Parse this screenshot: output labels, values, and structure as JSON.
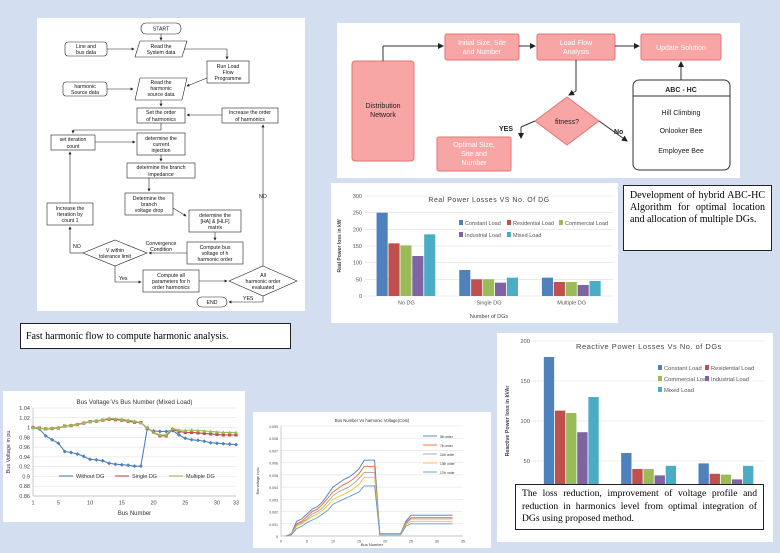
{
  "captions": {
    "flowchart": "Fast harmonic flow to compute harmonic analysis.",
    "abc": "Development of hybrid ABC-HC Algorithm for optimal location and allocation of multiple DGs.",
    "result": "The loss reduction, improvement of voltage profile and reduction in harmonics level from optimal integration of DGs using proposed method."
  },
  "flowchart": {
    "start": "START",
    "line_bus": [
      "Line and",
      "bus data"
    ],
    "read_system": [
      "Read the",
      "System data"
    ],
    "run_load": [
      "Run Load",
      "Flow",
      "Programme"
    ],
    "harm_src": [
      "harmonic",
      "Source data"
    ],
    "read_harm": [
      "Read the",
      "harmonic",
      "source data"
    ],
    "set_order": [
      "Set the order",
      "of harmonics"
    ],
    "inc_order": [
      "Increase the order",
      "of harmonics"
    ],
    "set_iter": [
      "set iteration",
      "count"
    ],
    "current_inj": [
      "determine the",
      "current",
      "injection"
    ],
    "branch_imp": [
      "determine the branch",
      "impedance"
    ],
    "branch_vd": [
      "Determine the",
      "branch",
      "voltage drop"
    ],
    "ha_hlf": [
      "determine the",
      "[HA] & [HLF]",
      "matrix"
    ],
    "inc_iter": [
      "Increase the",
      "iteration by",
      "count 1"
    ],
    "compute_bus": [
      "Compute bus",
      "voltage of h",
      "harmonic order"
    ],
    "v_within": [
      "V within",
      "tolerance limit"
    ],
    "convergence": [
      "Convergence",
      "Condition"
    ],
    "compute_all": [
      "Compute all",
      "parameters for h",
      "order harmonics"
    ],
    "all_eval": [
      "All",
      "harmonic order",
      "evaluated"
    ],
    "end": "END",
    "yes": "Yes",
    "no": "NO",
    "yes2": "YES"
  },
  "abc": {
    "dist_net": [
      "Distribution",
      "Network"
    ],
    "initial": [
      "Initial Size, Site",
      "and Number"
    ],
    "load_flow": [
      "Load Flow",
      "Analysis"
    ],
    "update": "Update Solution",
    "fitness": "fitness?",
    "optimal": [
      "Optimal Size,",
      "Site and",
      "Number"
    ],
    "yes": "YES",
    "no": "No",
    "abchc_title": "ABC - HC",
    "hill": "Hill Climbing",
    "onlooker": "Onlooker Bee",
    "employee": "Employee Bee"
  },
  "colors": {
    "pink": "#f8a5a5",
    "border": "#e57373",
    "s1": "#4f81bd",
    "s2": "#c0504d",
    "s3": "#9bbb59",
    "s4": "#8064a2",
    "s5": "#4bacc6"
  },
  "chart_data": [
    {
      "type": "bar",
      "title": "Real Power Losses VS No. Of DG",
      "xlabel": "Number of DGs",
      "ylabel": "Real Power loss in kW",
      "categories": [
        "No DG",
        "Single DG",
        "Multiple DG"
      ],
      "ylim": [
        0,
        300
      ],
      "yticks": [
        0,
        50,
        100,
        150,
        200,
        250,
        300
      ],
      "legend": "top-right",
      "series": [
        {
          "name": "Constant Load",
          "values": [
            250,
            78,
            55
          ]
        },
        {
          "name": "Residential Load",
          "values": [
            158,
            50,
            42
          ]
        },
        {
          "name": "Commercial Load",
          "values": [
            152,
            50,
            42
          ]
        },
        {
          "name": "Industrial Load",
          "values": [
            120,
            40,
            33
          ]
        },
        {
          "name": "Mixed Load",
          "values": [
            185,
            55,
            45
          ]
        }
      ]
    },
    {
      "type": "bar",
      "title": "Reactive Power Losses Vs No. of DGs",
      "xlabel": "Number of DGs",
      "ylabel": "Reactive Power loss in kVAr",
      "categories": [
        "No DG",
        "Single DG",
        "Multiple DG"
      ],
      "ylim": [
        0,
        200
      ],
      "yticks": [
        0,
        50,
        100,
        150,
        200
      ],
      "legend": "top-right",
      "series": [
        {
          "name": "Constant Load",
          "values": [
            180,
            60,
            47
          ]
        },
        {
          "name": "Residential Load",
          "values": [
            113,
            40,
            34
          ]
        },
        {
          "name": "Commercial Load",
          "values": [
            110,
            40,
            33
          ]
        },
        {
          "name": "Industrial Load",
          "values": [
            86,
            32,
            27
          ]
        },
        {
          "name": "Mixed Load",
          "values": [
            130,
            44,
            44
          ]
        }
      ]
    },
    {
      "type": "line",
      "title": "Bus Voltage Vs Bus Number (Mixed Load)",
      "xlabel": "Bus Number",
      "ylabel": "Bus Voltage in pu",
      "xticks": [
        1,
        5,
        10,
        15,
        20,
        25,
        30,
        33
      ],
      "ylim": [
        0.86,
        1.04
      ],
      "yticks": [
        "0.86",
        "0.88",
        "0.9",
        "0.92",
        "0.94",
        "0.96",
        "0.98",
        "1",
        "1.02",
        "1.04"
      ],
      "legend": "bottom",
      "x": [
        1,
        2,
        3,
        4,
        5,
        6,
        7,
        8,
        9,
        10,
        11,
        12,
        13,
        14,
        15,
        16,
        17,
        18,
        19,
        20,
        21,
        22,
        23,
        24,
        25,
        26,
        27,
        28,
        29,
        30,
        31,
        32,
        33
      ],
      "series": [
        {
          "name": "Without DG",
          "values": [
            1.0,
            0.997,
            0.983,
            0.975,
            0.968,
            0.951,
            0.949,
            0.946,
            0.941,
            0.935,
            0.934,
            0.932,
            0.927,
            0.925,
            0.924,
            0.923,
            0.921,
            0.921,
            0.997,
            0.993,
            0.992,
            0.992,
            0.994,
            0.985,
            0.978,
            0.975,
            0.974,
            0.972,
            0.969,
            0.968,
            0.967,
            0.966,
            0.965
          ]
        },
        {
          "name": "Single DG",
          "values": [
            1.0,
            0.999,
            0.997,
            0.998,
            0.999,
            1.003,
            1.004,
            1.006,
            1.009,
            1.012,
            1.013,
            1.015,
            1.017,
            1.016,
            1.015,
            1.013,
            1.011,
            1.01,
            0.999,
            0.99,
            0.983,
            0.983,
            0.996,
            0.992,
            0.99,
            0.99,
            0.989,
            0.988,
            0.987,
            0.986,
            0.985,
            0.985,
            0.985
          ]
        },
        {
          "name": "Multiple DG",
          "values": [
            1.0,
            0.999,
            0.997,
            0.999,
            1.0,
            1.003,
            1.005,
            1.007,
            1.01,
            1.012,
            1.014,
            1.016,
            1.019,
            1.018,
            1.017,
            1.015,
            1.013,
            1.01,
            1.0,
            0.99,
            0.985,
            0.985,
            0.998,
            0.995,
            0.994,
            0.995,
            0.994,
            0.993,
            0.992,
            0.991,
            0.99,
            0.99,
            0.99
          ]
        }
      ]
    },
    {
      "type": "line",
      "title": "Bus Number Vs harmonic Voltage(Cost)",
      "xlabel": "Bus Number",
      "ylabel": "Bus voltage in pu",
      "xticks": [
        0,
        5,
        10,
        15,
        20,
        25,
        30,
        35
      ],
      "ylim": [
        0,
        0.009
      ],
      "yticks": [
        "0",
        "0.001",
        "0.002",
        "0.003",
        "0.004",
        "0.005",
        "0.006",
        "0.007",
        "0.008",
        "0.009"
      ],
      "legend": "right",
      "x": [
        1,
        2,
        3,
        4,
        5,
        6,
        7,
        8,
        9,
        10,
        11,
        12,
        13,
        14,
        15,
        16,
        17,
        18,
        19,
        20,
        21,
        22,
        23,
        24,
        25,
        26,
        27,
        28,
        29,
        30,
        31,
        32,
        33
      ],
      "series": [
        {
          "name": "5th order",
          "values": [
            0,
            0.0002,
            0.0012,
            0.0014,
            0.0018,
            0.0022,
            0.0024,
            0.0028,
            0.0034,
            0.004,
            0.0043,
            0.0046,
            0.0048,
            0.0051,
            0.0055,
            0.0062,
            0.0062,
            0.0062,
            0.0002,
            0.0002,
            0.0002,
            0.0002,
            0.0002,
            0.0012,
            0.0017,
            0.0017,
            0.0017,
            0.0017,
            0.0017,
            0.0017,
            0.0017,
            0.0017,
            0.0017
          ]
        },
        {
          "name": "7th order",
          "values": [
            0,
            0.0002,
            0.001,
            0.0012,
            0.0016,
            0.002,
            0.0022,
            0.0026,
            0.0031,
            0.0036,
            0.0039,
            0.0042,
            0.0044,
            0.0047,
            0.0051,
            0.0057,
            0.0057,
            0.0057,
            0.0002,
            0.0002,
            0.0002,
            0.0002,
            0.0002,
            0.0011,
            0.0015,
            0.0015,
            0.0015,
            0.0015,
            0.0015,
            0.0015,
            0.0015,
            0.0015,
            0.0015
          ]
        },
        {
          "name": "11th order",
          "values": [
            0,
            0.0002,
            0.0009,
            0.0011,
            0.0014,
            0.0018,
            0.002,
            0.0023,
            0.0028,
            0.0033,
            0.0036,
            0.0038,
            0.004,
            0.0043,
            0.0047,
            0.0052,
            0.0052,
            0.0052,
            0.0002,
            0.0002,
            0.0002,
            0.0002,
            0.0002,
            0.001,
            0.0014,
            0.0014,
            0.0014,
            0.0014,
            0.0014,
            0.0014,
            0.0014,
            0.0014,
            0.0014
          ]
        },
        {
          "name": "13th order",
          "values": [
            0,
            0.0001,
            0.0008,
            0.001,
            0.0013,
            0.0016,
            0.0018,
            0.0021,
            0.0025,
            0.003,
            0.0032,
            0.0034,
            0.0036,
            0.0039,
            0.0042,
            0.0048,
            0.0048,
            0.0048,
            0.0001,
            0.0001,
            0.0001,
            0.0001,
            0.0001,
            0.0009,
            0.0012,
            0.0012,
            0.0012,
            0.0012,
            0.0012,
            0.0012,
            0.0012,
            0.0012,
            0.0012
          ]
        },
        {
          "name": "17th order",
          "values": [
            0,
            0.0001,
            0.0006,
            0.0008,
            0.0011,
            0.0013,
            0.0015,
            0.0018,
            0.0021,
            0.0026,
            0.0028,
            0.003,
            0.0032,
            0.0034,
            0.0036,
            0.0041,
            0.0041,
            0.0041,
            0.0001,
            0.0001,
            0.0001,
            0.0001,
            0.0001,
            0.0008,
            0.001,
            0.001,
            0.001,
            0.001,
            0.001,
            0.001,
            0.001,
            0.001,
            0.001
          ]
        }
      ]
    }
  ]
}
